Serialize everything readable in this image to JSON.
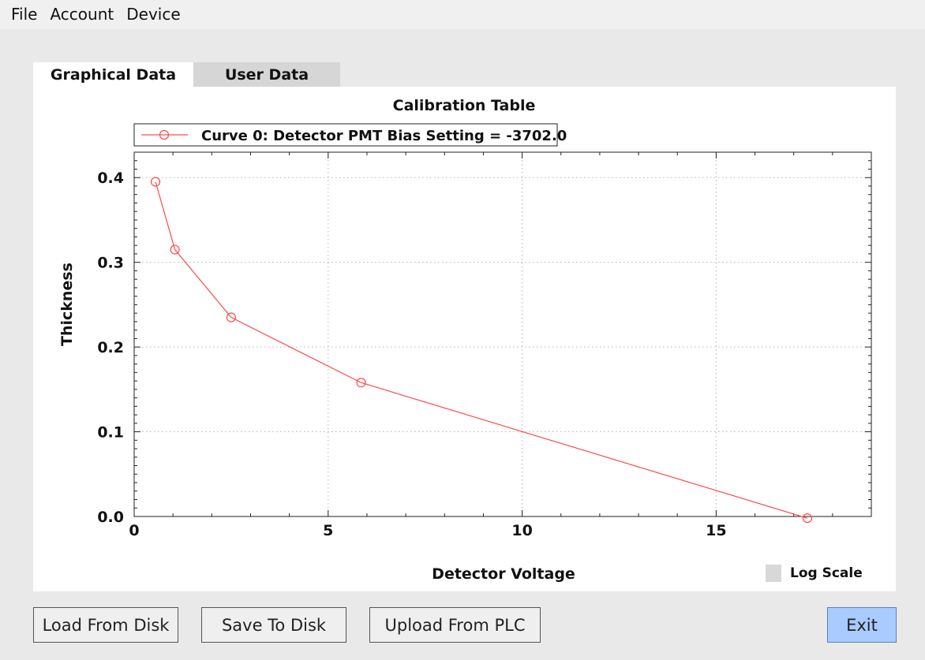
{
  "menu": {
    "file": "File",
    "account": "Account",
    "device": "Device"
  },
  "tabs": {
    "graphical": "Graphical Data",
    "user": "User Data"
  },
  "chart_data": {
    "type": "line",
    "title": "Calibration Table",
    "xlabel": "Detector Voltage",
    "ylabel": "Thickness",
    "xlim": [
      0,
      19
    ],
    "ylim": [
      0,
      0.43
    ],
    "x_ticks": [
      0,
      5,
      10,
      15
    ],
    "y_ticks": [
      0.0,
      0.1,
      0.2,
      0.3,
      0.4
    ],
    "x_tick_labels": [
      "0",
      "5",
      "10",
      "15"
    ],
    "y_tick_labels": [
      "0.0",
      "0.1",
      "0.2",
      "0.3",
      "0.4"
    ],
    "grid": true,
    "legend_position": "top-left",
    "series": [
      {
        "name": "Curve 0: Detector PMT Bias Setting = -3702.0",
        "color": "#ff4a4a",
        "marker": "circle",
        "x": [
          0.55,
          1.05,
          2.5,
          5.85,
          17.35
        ],
        "y": [
          0.395,
          0.315,
          0.235,
          0.158,
          -0.002
        ]
      }
    ]
  },
  "log_scale": {
    "label": "Log Scale"
  },
  "buttons": {
    "load": "Load From Disk",
    "save": "Save To Disk",
    "upload": "Upload From PLC",
    "exit": "Exit"
  }
}
